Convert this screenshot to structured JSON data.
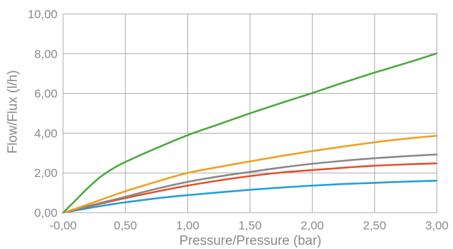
{
  "chart_data": {
    "type": "line",
    "title": "",
    "xlabel": "Pressure/Pressure (bar)",
    "ylabel": "Flow/Flux (l/h)",
    "xlim": [
      0,
      3
    ],
    "ylim": [
      0,
      10
    ],
    "grid": true,
    "legend": "none",
    "x_ticks": [
      "-0,00",
      "0,50",
      "1,00",
      "1,50",
      "2,00",
      "2,50",
      "3,00"
    ],
    "y_ticks": [
      "0,00",
      "2,00",
      "4,00",
      "6,00",
      "8,00",
      "10,00"
    ],
    "x": [
      0,
      0.1,
      0.2,
      0.3,
      0.4,
      0.5,
      0.75,
      1.0,
      1.25,
      1.5,
      1.75,
      2.0,
      2.25,
      2.5,
      2.75,
      3.0
    ],
    "series": [
      {
        "color": "#4aaa3c",
        "values": [
          0,
          0.62,
          1.25,
          1.8,
          2.22,
          2.55,
          3.25,
          3.9,
          4.45,
          5.0,
          5.52,
          6.02,
          6.55,
          7.05,
          7.52,
          8.02
        ]
      },
      {
        "color": "#f0a01e",
        "values": [
          0,
          0.2,
          0.42,
          0.64,
          0.86,
          1.08,
          1.56,
          2.0,
          2.3,
          2.58,
          2.85,
          3.1,
          3.33,
          3.54,
          3.72,
          3.87
        ]
      },
      {
        "color": "#888888",
        "values": [
          0,
          0.16,
          0.33,
          0.49,
          0.64,
          0.8,
          1.2,
          1.55,
          1.82,
          2.05,
          2.27,
          2.46,
          2.61,
          2.74,
          2.84,
          2.93
        ]
      },
      {
        "color": "#e4502a",
        "values": [
          0,
          0.15,
          0.3,
          0.45,
          0.59,
          0.73,
          1.06,
          1.36,
          1.62,
          1.84,
          2.02,
          2.14,
          2.26,
          2.36,
          2.43,
          2.48
        ]
      },
      {
        "color": "#1ea0dc",
        "values": [
          0,
          0.11,
          0.22,
          0.33,
          0.43,
          0.52,
          0.72,
          0.88,
          1.02,
          1.15,
          1.26,
          1.36,
          1.44,
          1.5,
          1.56,
          1.61
        ]
      }
    ]
  }
}
